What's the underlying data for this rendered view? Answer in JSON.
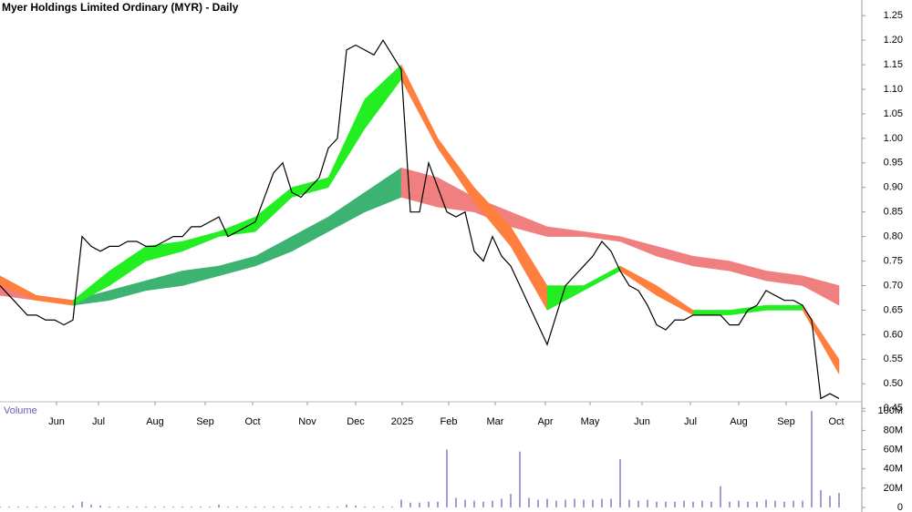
{
  "chart_data": [
    {
      "type": "price",
      "title": "Myer Holdings Limited Ordinary (MYR) - Daily",
      "xlim": [
        0,
        94.5
      ],
      "xticks": [
        {
          "value": 6.2,
          "label": "Jun"
        },
        {
          "value": 10.8,
          "label": "Jul"
        },
        {
          "value": 17,
          "label": "Aug"
        },
        {
          "value": 22.5,
          "label": "Sep"
        },
        {
          "value": 27.7,
          "label": "Oct"
        },
        {
          "value": 33.7,
          "label": "Nov"
        },
        {
          "value": 39,
          "label": "Dec"
        },
        {
          "value": 44.1,
          "label": "2025"
        },
        {
          "value": 49.2,
          "label": "Feb"
        },
        {
          "value": 54.3,
          "label": "Mar"
        },
        {
          "value": 59.8,
          "label": "Apr"
        },
        {
          "value": 64.7,
          "label": "May"
        },
        {
          "value": 70.4,
          "label": "Jun"
        },
        {
          "value": 75.7,
          "label": "Jul"
        },
        {
          "value": 81,
          "label": "Aug"
        },
        {
          "value": 86.2,
          "label": "Sep"
        },
        {
          "value": 91.7,
          "label": "Oct"
        }
      ],
      "ylim": [
        0.43,
        1.28
      ],
      "yticks": [
        {
          "value": 0.45,
          "label": "0.45"
        },
        {
          "value": 0.5,
          "label": "0.50"
        },
        {
          "value": 0.55,
          "label": "0.55"
        },
        {
          "value": 0.6,
          "label": "0.60"
        },
        {
          "value": 0.65,
          "label": "0.65"
        },
        {
          "value": 0.7,
          "label": "0.70"
        },
        {
          "value": 0.75,
          "label": "0.75"
        },
        {
          "value": 0.8,
          "label": "0.80"
        },
        {
          "value": 0.85,
          "label": "0.85"
        },
        {
          "value": 0.9,
          "label": "0.90"
        },
        {
          "value": 0.95,
          "label": "0.95"
        },
        {
          "value": 1.0,
          "label": "1.00"
        },
        {
          "value": 1.05,
          "label": "1.05"
        },
        {
          "value": 1.1,
          "label": "1.10"
        },
        {
          "value": 1.15,
          "label": "1.15"
        },
        {
          "value": 1.2,
          "label": "1.20"
        },
        {
          "value": 1.25,
          "label": "1.25"
        }
      ],
      "price_color": "#000000",
      "close": [
        0.7,
        0.68,
        0.66,
        0.64,
        0.64,
        0.63,
        0.63,
        0.62,
        0.63,
        0.8,
        0.78,
        0.77,
        0.78,
        0.78,
        0.79,
        0.79,
        0.78,
        0.78,
        0.79,
        0.8,
        0.8,
        0.82,
        0.82,
        0.83,
        0.84,
        0.8,
        0.81,
        0.82,
        0.83,
        0.88,
        0.93,
        0.95,
        0.89,
        0.88,
        0.9,
        0.92,
        0.98,
        1.0,
        1.18,
        1.19,
        1.18,
        1.17,
        1.2,
        1.17,
        1.14,
        0.85,
        0.85,
        0.95,
        0.9,
        0.85,
        0.84,
        0.85,
        0.77,
        0.75,
        0.8,
        0.76,
        0.74,
        0.7,
        0.66,
        0.62,
        0.58,
        0.64,
        0.7,
        0.72,
        0.74,
        0.76,
        0.79,
        0.77,
        0.73,
        0.7,
        0.69,
        0.66,
        0.62,
        0.61,
        0.63,
        0.63,
        0.64,
        0.64,
        0.64,
        0.64,
        0.62,
        0.62,
        0.65,
        0.66,
        0.69,
        0.68,
        0.67,
        0.67,
        0.66,
        0.63,
        0.47,
        0.48,
        0.47
      ],
      "band_x": [
        0,
        4,
        8,
        12,
        16,
        20,
        24,
        28,
        32,
        36,
        40,
        44,
        48,
        52,
        56,
        60,
        64,
        68,
        72,
        76,
        80,
        84,
        88,
        92
      ],
      "bands": [
        {
          "rise_color": "#3cb371",
          "fall_color": "#f08080",
          "upper": [
            0.7,
            0.68,
            0.67,
            0.69,
            0.71,
            0.73,
            0.74,
            0.76,
            0.8,
            0.84,
            0.89,
            0.94,
            0.92,
            0.88,
            0.85,
            0.82,
            0.81,
            0.8,
            0.78,
            0.76,
            0.75,
            0.73,
            0.72,
            0.7
          ],
          "lower": [
            0.68,
            0.67,
            0.66,
            0.67,
            0.69,
            0.7,
            0.72,
            0.74,
            0.77,
            0.81,
            0.85,
            0.88,
            0.86,
            0.85,
            0.82,
            0.8,
            0.8,
            0.79,
            0.76,
            0.74,
            0.73,
            0.71,
            0.7,
            0.66
          ]
        },
        {
          "rise_color": "#22ee22",
          "fall_color": "#ff7f3f",
          "upper": [
            0.72,
            0.68,
            0.67,
            0.73,
            0.78,
            0.79,
            0.81,
            0.84,
            0.9,
            0.92,
            1.08,
            1.15,
            1.0,
            0.9,
            0.82,
            0.7,
            0.7,
            0.74,
            0.7,
            0.65,
            0.65,
            0.66,
            0.66,
            0.55
          ],
          "lower": [
            0.7,
            0.67,
            0.66,
            0.7,
            0.75,
            0.77,
            0.8,
            0.81,
            0.88,
            0.9,
            1.02,
            1.12,
            0.98,
            0.87,
            0.78,
            0.65,
            0.69,
            0.73,
            0.68,
            0.64,
            0.64,
            0.65,
            0.65,
            0.52
          ]
        }
      ]
    },
    {
      "type": "volume",
      "title": "Volume",
      "ylim": [
        0,
        104
      ],
      "yticks": [
        {
          "value": 0,
          "label": "0"
        },
        {
          "value": 20,
          "label": "20M"
        },
        {
          "value": 40,
          "label": "40M"
        },
        {
          "value": 60,
          "label": "60M"
        },
        {
          "value": 80,
          "label": "80M"
        },
        {
          "value": 100,
          "label": "100M"
        }
      ],
      "color": "#8080c0",
      "values": [
        1,
        1,
        1,
        1,
        1,
        1,
        1,
        1,
        2,
        6,
        3,
        2,
        1,
        1,
        1,
        1,
        1,
        1,
        1,
        1,
        1,
        1,
        1,
        1,
        3,
        1,
        1,
        1,
        1,
        1,
        1,
        1,
        1,
        1,
        1,
        1,
        1,
        1,
        3,
        2,
        1,
        1,
        1,
        1,
        8,
        5,
        5,
        6,
        6,
        60,
        10,
        8,
        7,
        6,
        7,
        9,
        14,
        58,
        10,
        8,
        9,
        7,
        8,
        9,
        8,
        8,
        9,
        9,
        50,
        8,
        7,
        8,
        6,
        6,
        6,
        7,
        6,
        7,
        6,
        22,
        6,
        7,
        6,
        6,
        8,
        7,
        6,
        7,
        7,
        100,
        18,
        12,
        15
      ]
    }
  ]
}
